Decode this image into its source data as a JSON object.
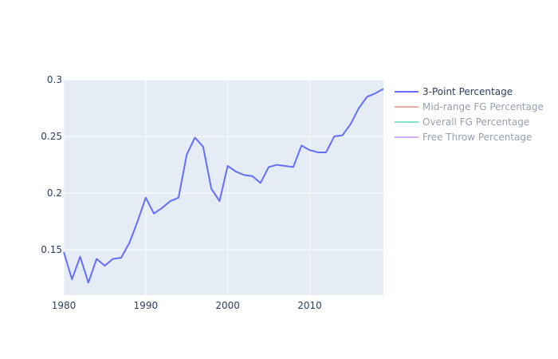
{
  "chart_data": {
    "type": "line",
    "title": "",
    "xlabel": "",
    "ylabel": "",
    "xlim": [
      1980,
      2019
    ],
    "ylim": [
      0.11,
      0.3
    ],
    "xticks": [
      1980,
      1990,
      2000,
      2010
    ],
    "yticks": [
      0.15,
      0.2,
      0.25,
      0.3
    ],
    "grid": true,
    "legend_position": "right",
    "plot_background": "#e5ecf6",
    "series": [
      {
        "name": "3-Point Percentage",
        "color": "#636efa",
        "visible": true,
        "x": [
          1980,
          1981,
          1982,
          1983,
          1984,
          1985,
          1986,
          1987,
          1988,
          1989,
          1990,
          1991,
          1992,
          1993,
          1994,
          1995,
          1996,
          1997,
          1998,
          1999,
          2000,
          2001,
          2002,
          2003,
          2004,
          2005,
          2006,
          2007,
          2008,
          2009,
          2010,
          2011,
          2012,
          2013,
          2014,
          2015,
          2016,
          2017,
          2018,
          2019
        ],
        "y": [
          0.148,
          0.124,
          0.144,
          0.121,
          0.142,
          0.136,
          0.142,
          0.143,
          0.156,
          0.175,
          0.196,
          0.182,
          0.187,
          0.193,
          0.196,
          0.234,
          0.249,
          0.241,
          0.204,
          0.193,
          0.224,
          0.219,
          0.216,
          0.215,
          0.209,
          0.223,
          0.225,
          0.224,
          0.223,
          0.242,
          0.238,
          0.236,
          0.236,
          0.25,
          0.251,
          0.261,
          0.275,
          0.285,
          0.288,
          0.292
        ]
      },
      {
        "name": "Mid-range FG Percentage",
        "color": "#ef553b",
        "visible": false
      },
      {
        "name": "Overall FG Percentage",
        "color": "#00cc96",
        "visible": false
      },
      {
        "name": "Free Throw Percentage",
        "color": "#ab63fa",
        "visible": false
      }
    ]
  }
}
